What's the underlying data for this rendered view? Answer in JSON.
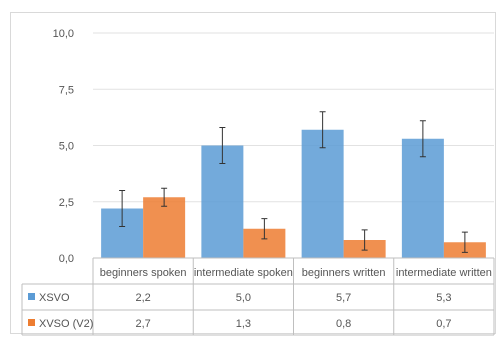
{
  "chart_data": {
    "type": "bar",
    "categories": [
      "beginners spoken",
      "intermediate spoken",
      "beginners written",
      "intermediate written"
    ],
    "series": [
      {
        "name": "XSVO",
        "values": [
          2.2,
          5.0,
          5.7,
          5.3
        ],
        "error": [
          0.8,
          0.8,
          0.8,
          0.8
        ],
        "color": "#5b9bd5",
        "labels": [
          "2,2",
          "5,0",
          "5,7",
          "5,3"
        ]
      },
      {
        "name": "XVSO (V2)",
        "values": [
          2.7,
          1.3,
          0.8,
          0.7
        ],
        "error": [
          0.4,
          0.45,
          0.45,
          0.45
        ],
        "color": "#ed7d31",
        "labels": [
          "2,7",
          "1,3",
          "0,8",
          "0,7"
        ]
      }
    ],
    "ylim": [
      0,
      10
    ],
    "yticks": [
      0,
      2.5,
      5,
      7.5,
      10
    ],
    "ytick_labels": [
      "0,0",
      "2,5",
      "5,0",
      "7,5",
      "10,0"
    ],
    "grid": true,
    "legend": "data-table-left",
    "title": "",
    "xlabel": "",
    "ylabel": ""
  }
}
